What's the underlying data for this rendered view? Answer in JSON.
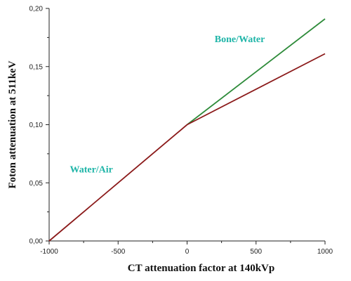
{
  "colors": {
    "annotation": "#1fb5a8",
    "water_air_line": "#8b1a1a",
    "bone_water_upper": "#2e8b3a",
    "bone_water_lower": "#8b1a1a",
    "axis": "#222222"
  },
  "chart_data": {
    "type": "line",
    "xlabel": "CT attenuation factor at 140kVp",
    "ylabel": "Foton attenuation at 511keV",
    "xlim": [
      -1000,
      1000
    ],
    "ylim": [
      0,
      0.2
    ],
    "x_ticks": [
      -1000,
      -500,
      0,
      500,
      1000
    ],
    "x_tick_labels": [
      "-1000",
      "-500",
      "0",
      "500",
      "1000"
    ],
    "y_ticks": [
      0,
      0.05,
      0.1,
      0.15,
      0.2
    ],
    "y_tick_labels": [
      "0,00",
      "0,05",
      "0,10",
      "0,15",
      "0,20"
    ],
    "grid": false,
    "series": [
      {
        "color": "#8b1a1a",
        "x": [
          -1000,
          0
        ],
        "y": [
          0,
          0.1
        ]
      },
      {
        "color": "#2e8b3a",
        "x": [
          0,
          1000
        ],
        "y": [
          0.1,
          0.191
        ]
      },
      {
        "color": "#8b1a1a",
        "x": [
          0,
          1000
        ],
        "y": [
          0.1,
          0.161
        ]
      }
    ],
    "annotations": [
      {
        "text": "Water/Air",
        "x": -850,
        "y": 0.059
      },
      {
        "text": "Bone/Water",
        "x": 200,
        "y": 0.171
      }
    ]
  }
}
